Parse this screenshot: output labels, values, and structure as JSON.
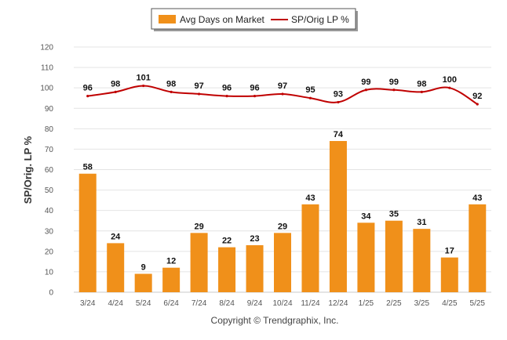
{
  "chart_data": {
    "type": "bar",
    "categories": [
      "3/24",
      "4/24",
      "5/24",
      "6/24",
      "7/24",
      "8/24",
      "9/24",
      "10/24",
      "11/24",
      "12/24",
      "1/25",
      "2/25",
      "3/25",
      "4/25",
      "5/25"
    ],
    "series": [
      {
        "name": "Avg Days on Market",
        "type": "bar",
        "color": "#f0901a",
        "values": [
          58,
          24,
          9,
          12,
          29,
          22,
          23,
          29,
          43,
          74,
          34,
          35,
          31,
          17,
          43
        ]
      },
      {
        "name": "SP/Orig LP %",
        "type": "line",
        "color": "#c00000",
        "values": [
          96,
          98,
          101,
          98,
          97,
          96,
          96,
          97,
          95,
          93,
          99,
          99,
          98,
          100,
          92
        ]
      }
    ],
    "ylabel": "SP/Orig. LP %",
    "ylim": [
      0,
      120
    ],
    "yticks": [
      0,
      10,
      20,
      30,
      40,
      50,
      60,
      70,
      80,
      90,
      100,
      110,
      120
    ],
    "grid": true,
    "legend_position": "top-center",
    "credit": "Copyright © Trendgraphix, Inc."
  }
}
